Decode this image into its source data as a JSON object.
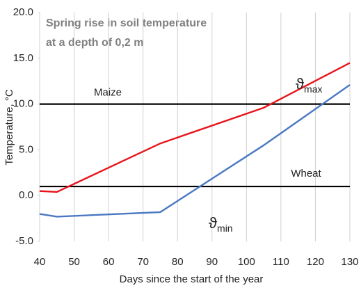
{
  "chart_data": {
    "type": "line",
    "title": [
      "Spring rise in soil temperature",
      "at a depth of 0,2 m"
    ],
    "x_label": "Days since the start of the year",
    "y_label": "Temperature, °C",
    "xlim": [
      40,
      130
    ],
    "xticks": [
      40,
      50,
      60,
      70,
      80,
      90,
      100,
      110,
      120,
      130
    ],
    "ylim": [
      -5,
      20
    ],
    "yticks": [
      {
        "value": -5,
        "label": "-5.0"
      },
      {
        "value": 0,
        "label": "0.0"
      },
      {
        "value": 5,
        "label": "5.0"
      },
      {
        "value": 10,
        "label": "10.0"
      },
      {
        "value": 15,
        "label": "15.0"
      },
      {
        "value": 20,
        "label": "20.0"
      }
    ],
    "grid": "x",
    "x": [
      40,
      45,
      75,
      105,
      130
    ],
    "series": [
      {
        "name": "ϑ",
        "subscript": "max",
        "color": "#e8141c",
        "values": [
          0.5,
          0.4,
          5.7,
          9.6,
          14.5
        ]
      },
      {
        "name": "ϑ",
        "subscript": "min",
        "color": "#4a78c2",
        "values": [
          -2.0,
          -2.3,
          -1.8,
          5.5,
          12.1
        ]
      }
    ],
    "reference_lines": [
      {
        "label": "Maize",
        "value": 10,
        "color": "#000000"
      },
      {
        "label": "Wheat",
        "value": 1,
        "color": "#000000"
      }
    ]
  }
}
